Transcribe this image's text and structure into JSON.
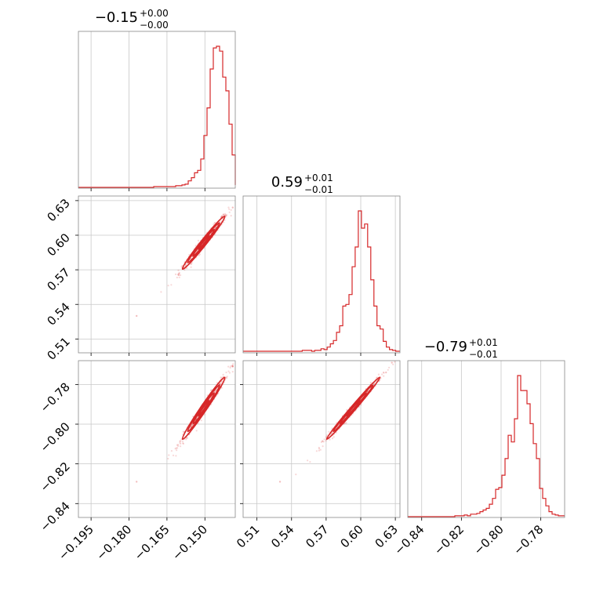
{
  "chart_data": {
    "type": "corner",
    "color": "#d62728",
    "parameters": [
      {
        "title": {
          "value": "−0.15",
          "plus": "+0.00",
          "minus": "−0.00"
        },
        "range": [
          -0.2,
          -0.138
        ],
        "ticks": [
          -0.195,
          -0.18,
          -0.165,
          -0.15
        ],
        "tick_labels": [
          "−0.195",
          "−0.180",
          "−0.165",
          "−0.150"
        ],
        "histogram": {
          "bin_edges_start": -0.2,
          "bin_width": 0.00124,
          "values": [
            0,
            0,
            0,
            0,
            0,
            0,
            0,
            0,
            0,
            0,
            0,
            0,
            0,
            0,
            0,
            0,
            0,
            0,
            0,
            0,
            0,
            0,
            0,
            0,
            1,
            1,
            1,
            1,
            1,
            1,
            1,
            2,
            2,
            3,
            4,
            8,
            12,
            18,
            21,
            35,
            64,
            98,
            146,
            172,
            174,
            168,
            136,
            119,
            78,
            40,
            22,
            12,
            7,
            3
          ]
        }
      },
      {
        "title": {
          "value": "0.59",
          "plus": "+0.01",
          "minus": "−0.01"
        },
        "range": [
          0.498,
          0.634
        ],
        "ticks": [
          0.51,
          0.54,
          0.57,
          0.6,
          0.63
        ],
        "tick_labels": [
          "0.51",
          "0.54",
          "0.57",
          "0.60",
          "0.63"
        ],
        "histogram": {
          "bin_edges_start": 0.498,
          "bin_width": 0.0027,
          "values": [
            1,
            1,
            1,
            1,
            1,
            1,
            1,
            1,
            1,
            1,
            1,
            1,
            1,
            1,
            1,
            1,
            1,
            1,
            1,
            2,
            2,
            2,
            1,
            2,
            2,
            4,
            3,
            6,
            10,
            14,
            24,
            32,
            56,
            58,
            70,
            104,
            128,
            172,
            151,
            156,
            128,
            88,
            56,
            32,
            28,
            13,
            6,
            3,
            2,
            1,
            1
          ]
        }
      },
      {
        "title": {
          "value": "−0.79",
          "plus": "+0.01",
          "minus": "−0.01"
        },
        "range": [
          -0.847,
          -0.768
        ],
        "ticks": [
          -0.84,
          -0.82,
          -0.8,
          -0.78
        ],
        "tick_labels": [
          "−0.84",
          "−0.82",
          "−0.80",
          "−0.78"
        ],
        "histogram": {
          "bin_edges_start": -0.847,
          "bin_width": 0.00158,
          "values": [
            0,
            0,
            0,
            0,
            0,
            0,
            0,
            0,
            0,
            0,
            0,
            0,
            0,
            0,
            0,
            1,
            1,
            1,
            2,
            1,
            3,
            3,
            4,
            6,
            8,
            10,
            15,
            22,
            33,
            35,
            50,
            70,
            98,
            90,
            118,
            170,
            152,
            152,
            136,
            112,
            88,
            70,
            34,
            22,
            13,
            6,
            3,
            2,
            1,
            1
          ]
        }
      }
    ],
    "ytick_labels_col0": [
      {
        "row": 1,
        "labels": [
          "0.51",
          "0.54",
          "0.57",
          "0.60",
          "0.63"
        ],
        "values": [
          0.51,
          0.54,
          0.57,
          0.6,
          0.63
        ]
      },
      {
        "row": 2,
        "labels": [
          "−0.84",
          "−0.82",
          "−0.80",
          "−0.78"
        ],
        "values": [
          -0.84,
          -0.82,
          -0.8,
          -0.78
        ]
      }
    ],
    "pairs": [
      {
        "row": 1,
        "col": 0,
        "center": [
          -0.1505,
          0.5935
        ],
        "spread": [
          0.0042,
          0.0115
        ],
        "rho": 0.985,
        "tail_low": [
          -0.177,
          0.53
        ],
        "tail_high": [
          -0.139,
          0.624
        ]
      },
      {
        "row": 2,
        "col": 0,
        "center": [
          -0.1505,
          -0.792
        ],
        "spread": [
          0.0042,
          0.0078
        ],
        "rho": 0.985,
        "tail_low": [
          -0.177,
          -0.829
        ],
        "tail_high": [
          -0.139,
          -0.771
        ]
      },
      {
        "row": 2,
        "col": 1,
        "center": [
          0.5935,
          -0.792
        ],
        "spread": [
          0.0115,
          0.0078
        ],
        "rho": 0.993,
        "tail_low": [
          0.53,
          -0.829
        ],
        "tail_high": [
          0.627,
          -0.769
        ]
      }
    ],
    "grid": true
  }
}
